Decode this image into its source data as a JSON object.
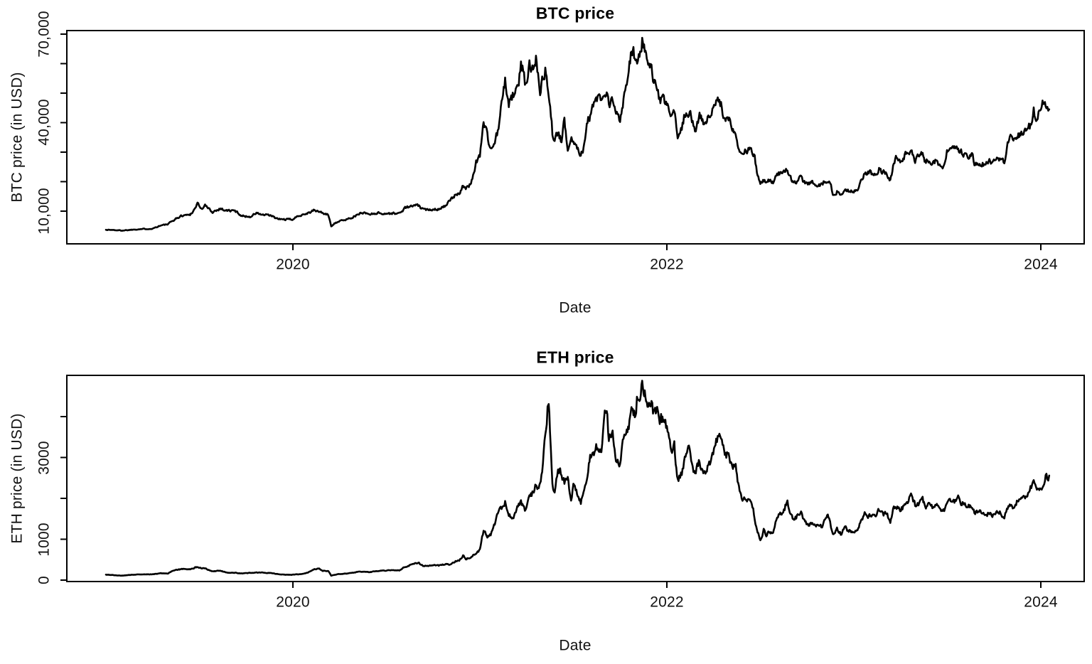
{
  "page": {
    "background": "#ffffff",
    "text_color": "#111111",
    "line_color": "#000000"
  },
  "chart_data": [
    {
      "type": "line",
      "name": "btc",
      "title": "BTC price",
      "xlabel": "Date",
      "ylabel": "BTC price (in USD)",
      "x_unit": "decimal_year",
      "x_ticks": [
        2020,
        2022,
        2024
      ],
      "x_tick_labels": [
        "2020",
        "2022",
        "2024"
      ],
      "y_ticks": [
        10000,
        20000,
        30000,
        40000,
        50000,
        60000,
        70000
      ],
      "y_tick_labels": [
        "10,000",
        "",
        "",
        "40,000",
        "",
        "",
        "70,000"
      ],
      "xlim": [
        2018.791,
        2024.232
      ],
      "ylim": [
        -1080,
        71200
      ],
      "grid": false,
      "legend": null,
      "line_color": "#000000",
      "line_width": 2.6,
      "noise": {
        "seed": 1337,
        "ar": 0.45,
        "sigma": 0.07,
        "step_years": 0.004
      },
      "x": [
        2019.0,
        2019.04,
        2019.08,
        2019.12,
        2019.16,
        2019.21,
        2019.25,
        2019.29,
        2019.33,
        2019.37,
        2019.41,
        2019.45,
        2019.478,
        2019.49,
        2019.51,
        2019.53,
        2019.57,
        2019.61,
        2019.65,
        2019.69,
        2019.73,
        2019.77,
        2019.805,
        2019.84,
        2019.88,
        2019.92,
        2019.96,
        2020.0,
        2020.04,
        2020.08,
        2020.115,
        2020.15,
        2020.19,
        2020.205,
        2020.23,
        2020.27,
        2020.31,
        2020.35,
        2020.37,
        2020.41,
        2020.45,
        2020.49,
        2020.53,
        2020.57,
        2020.6,
        2020.64,
        2020.67,
        2020.7,
        2020.74,
        2020.78,
        2020.82,
        2020.845,
        2020.87,
        2020.89,
        2020.91,
        2020.925,
        2020.945,
        2020.96,
        2020.98,
        2021.0,
        2021.02,
        2021.04,
        2021.058,
        2021.08,
        2021.1,
        2021.12,
        2021.135,
        2021.155,
        2021.18,
        2021.2,
        2021.22,
        2021.232,
        2021.245,
        2021.265,
        2021.285,
        2021.3,
        2021.315,
        2021.322,
        2021.333,
        2021.35,
        2021.368,
        2021.38,
        2021.388,
        2021.4,
        2021.418,
        2021.437,
        2021.452,
        2021.47,
        2021.49,
        2021.5,
        2021.52,
        2021.54,
        2021.558,
        2021.572,
        2021.59,
        2021.61,
        2021.63,
        2021.65,
        2021.668,
        2021.682,
        2021.69,
        2021.71,
        2021.728,
        2021.75,
        2021.768,
        2021.782,
        2021.8,
        2021.818,
        2021.832,
        2021.85,
        2021.868,
        2021.882,
        2021.9,
        2021.918,
        2021.93,
        2021.948,
        2021.962,
        2021.98,
        2022.0,
        2022.02,
        2022.04,
        2022.058,
        2022.08,
        2022.1,
        2022.118,
        2022.138,
        2022.155,
        2022.175,
        2022.195,
        2022.218,
        2022.248,
        2022.268,
        2022.29,
        2022.31,
        2022.33,
        2022.35,
        2022.368,
        2022.382,
        2022.4,
        2022.418,
        2022.44,
        2022.458,
        2022.47,
        2022.482,
        2022.5,
        2022.518,
        2022.532,
        2022.55,
        2022.568,
        2022.59,
        2022.61,
        2022.63,
        2022.645,
        2022.662,
        2022.68,
        2022.7,
        2022.718,
        2022.732,
        2022.75,
        2022.77,
        2022.79,
        2022.81,
        2022.83,
        2022.85,
        2022.868,
        2022.878,
        2022.888,
        2022.91,
        2022.93,
        2022.95,
        2022.968,
        2022.982,
        2023.0,
        2023.02,
        2023.038,
        2023.058,
        2023.08,
        2023.098,
        2023.118,
        2023.135,
        2023.155,
        2023.175,
        2023.195,
        2023.21,
        2023.225,
        2023.248,
        2023.268,
        2023.288,
        2023.31,
        2023.328,
        2023.35,
        2023.368,
        2023.382,
        2023.4,
        2023.42,
        2023.44,
        2023.455,
        2023.475,
        2023.488,
        2023.498,
        2023.518,
        2023.538,
        2023.558,
        2023.578,
        2023.598,
        2023.618,
        2023.632,
        2023.645,
        2023.665,
        2023.685,
        2023.705,
        2023.725,
        2023.745,
        2023.765,
        2023.785,
        2023.805,
        2023.815,
        2023.83,
        2023.85,
        2023.868,
        2023.888,
        2023.908,
        2023.928,
        2023.945,
        2023.962,
        2023.975,
        2023.992,
        2024.005,
        2024.018,
        2024.03,
        2024.04,
        2024.045
      ],
      "values": [
        3700,
        3620,
        3440,
        3610,
        3860,
        3980,
        4110,
        5120,
        5500,
        7280,
        8560,
        8830,
        11000,
        12900,
        10700,
        11900,
        9700,
        10900,
        10150,
        10100,
        8350,
        8100,
        9350,
        8700,
        8520,
        7300,
        7180,
        7220,
        8750,
        9340,
        10280,
        9650,
        8600,
        4970,
        6250,
        6860,
        7760,
        8800,
        9650,
        8960,
        9430,
        9150,
        9220,
        9230,
        11090,
        11740,
        11900,
        10340,
        10690,
        10790,
        12000,
        13780,
        15480,
        16320,
        18720,
        17150,
        18800,
        21400,
        26450,
        29000,
        40600,
        35500,
        31000,
        33100,
        38300,
        47400,
        54200,
        46300,
        49600,
        50400,
        59800,
        57100,
        52400,
        58800,
        59000,
        63300,
        56100,
        50100,
        54000,
        57800,
        49000,
        43000,
        36700,
        33200,
        36700,
        33400,
        40300,
        31900,
        35000,
        33500,
        31600,
        29900,
        32200,
        39500,
        42800,
        45600,
        48300,
        47100,
        47000,
        50100,
        45200,
        47300,
        42800,
        41500,
        48200,
        51500,
        61300,
        66000,
        61000,
        61500,
        67600,
        64900,
        58700,
        57200,
        54000,
        50500,
        47500,
        46900,
        46300,
        43100,
        42700,
        35100,
        38500,
        43800,
        44000,
        40100,
        37700,
        43200,
        39300,
        40900,
        44400,
        47200,
        45800,
        40100,
        41100,
        39200,
        36000,
        31000,
        29200,
        30200,
        31000,
        29900,
        28000,
        22600,
        19000,
        20600,
        19300,
        20800,
        19900,
        23300,
        22500,
        23300,
        24400,
        21300,
        20000,
        19800,
        22200,
        19700,
        19000,
        19600,
        19400,
        19100,
        19200,
        20600,
        20500,
        18300,
        16000,
        16700,
        15900,
        17100,
        17000,
        16800,
        16550,
        16950,
        20900,
        22700,
        23000,
        22900,
        21800,
        24600,
        23200,
        23500,
        20200,
        24700,
        27500,
        27250,
        28200,
        30100,
        30300,
        27600,
        29250,
        28900,
        27000,
        27100,
        26800,
        27200,
        25800,
        25100,
        26600,
        30000,
        30500,
        30600,
        30300,
        29900,
        29200,
        29100,
        29400,
        26050,
        26000,
        25900,
        25800,
        26550,
        26250,
        27000,
        27600,
        27000,
        29900,
        34200,
        34400,
        35100,
        36300,
        36000,
        37800,
        39000,
        43800,
        41400,
        43600,
        45200,
        47600,
        46800,
        43000,
        43400
      ]
    },
    {
      "type": "line",
      "name": "eth",
      "title": "ETH price",
      "xlabel": "Date",
      "ylabel": "ETH price (in USD)",
      "x_unit": "decimal_year",
      "x_ticks": [
        2020,
        2022,
        2024
      ],
      "x_tick_labels": [
        "2020",
        "2022",
        "2024"
      ],
      "y_ticks": [
        0,
        1000,
        2000,
        3000,
        4000
      ],
      "y_tick_labels": [
        "0",
        "1000",
        "",
        "3000",
        ""
      ],
      "xlim": [
        2018.791,
        2024.232
      ],
      "ylim": [
        -35,
        5010
      ],
      "grid": false,
      "legend": null,
      "line_color": "#000000",
      "line_width": 2.6,
      "noise": {
        "seed": 9042,
        "ar": 0.45,
        "sigma": 0.07,
        "step_years": 0.004
      },
      "x": [
        2019.0,
        2019.04,
        2019.08,
        2019.12,
        2019.16,
        2019.21,
        2019.25,
        2019.29,
        2019.33,
        2019.37,
        2019.41,
        2019.45,
        2019.478,
        2019.49,
        2019.51,
        2019.53,
        2019.57,
        2019.61,
        2019.65,
        2019.69,
        2019.73,
        2019.77,
        2019.805,
        2019.84,
        2019.88,
        2019.92,
        2019.96,
        2020.0,
        2020.04,
        2020.08,
        2020.115,
        2020.14,
        2020.16,
        2020.19,
        2020.205,
        2020.23,
        2020.27,
        2020.31,
        2020.35,
        2020.37,
        2020.41,
        2020.45,
        2020.49,
        2020.53,
        2020.57,
        2020.6,
        2020.64,
        2020.67,
        2020.7,
        2020.74,
        2020.78,
        2020.82,
        2020.845,
        2020.87,
        2020.89,
        2020.91,
        2020.925,
        2020.945,
        2020.96,
        2020.98,
        2021.0,
        2021.02,
        2021.04,
        2021.058,
        2021.08,
        2021.1,
        2021.12,
        2021.135,
        2021.155,
        2021.18,
        2021.2,
        2021.22,
        2021.232,
        2021.245,
        2021.265,
        2021.285,
        2021.3,
        2021.315,
        2021.322,
        2021.333,
        2021.35,
        2021.362,
        2021.368,
        2021.375,
        2021.38,
        2021.388,
        2021.4,
        2021.418,
        2021.437,
        2021.452,
        2021.47,
        2021.488,
        2021.5,
        2021.52,
        2021.54,
        2021.558,
        2021.572,
        2021.59,
        2021.61,
        2021.63,
        2021.65,
        2021.668,
        2021.682,
        2021.69,
        2021.71,
        2021.728,
        2021.75,
        2021.768,
        2021.782,
        2021.8,
        2021.818,
        2021.832,
        2021.84,
        2021.85,
        2021.868,
        2021.882,
        2021.9,
        2021.918,
        2021.93,
        2021.948,
        2021.962,
        2021.98,
        2022.0,
        2022.02,
        2022.04,
        2022.058,
        2022.08,
        2022.1,
        2022.118,
        2022.138,
        2022.155,
        2022.175,
        2022.195,
        2022.218,
        2022.248,
        2022.268,
        2022.29,
        2022.31,
        2022.33,
        2022.35,
        2022.368,
        2022.382,
        2022.4,
        2022.418,
        2022.44,
        2022.458,
        2022.47,
        2022.482,
        2022.5,
        2022.518,
        2022.532,
        2022.55,
        2022.568,
        2022.59,
        2022.61,
        2022.63,
        2022.645,
        2022.662,
        2022.68,
        2022.7,
        2022.718,
        2022.732,
        2022.75,
        2022.77,
        2022.79,
        2022.81,
        2022.83,
        2022.85,
        2022.868,
        2022.878,
        2022.888,
        2022.91,
        2022.93,
        2022.95,
        2022.968,
        2022.982,
        2023.0,
        2023.02,
        2023.038,
        2023.058,
        2023.08,
        2023.098,
        2023.118,
        2023.135,
        2023.155,
        2023.175,
        2023.195,
        2023.21,
        2023.225,
        2023.248,
        2023.268,
        2023.288,
        2023.31,
        2023.328,
        2023.35,
        2023.368,
        2023.382,
        2023.4,
        2023.42,
        2023.44,
        2023.455,
        2023.475,
        2023.488,
        2023.498,
        2023.518,
        2023.538,
        2023.558,
        2023.578,
        2023.598,
        2023.618,
        2023.632,
        2023.645,
        2023.665,
        2023.685,
        2023.705,
        2023.725,
        2023.745,
        2023.765,
        2023.785,
        2023.805,
        2023.815,
        2023.83,
        2023.85,
        2023.868,
        2023.888,
        2023.908,
        2023.928,
        2023.945,
        2023.962,
        2023.975,
        2023.992,
        2024.005,
        2024.018,
        2024.03,
        2024.04,
        2024.045
      ],
      "values": [
        133,
        122,
        107,
        123,
        137,
        138,
        141,
        167,
        163,
        249,
        268,
        265,
        308,
        318,
        290,
        285,
        218,
        226,
        186,
        181,
        166,
        176,
        188,
        181,
        176,
        149,
        133,
        130,
        144,
        181,
        266,
        281,
        228,
        229,
        111,
        136,
        158,
        171,
        206,
        210,
        191,
        226,
        231,
        241,
        240,
        321,
        391,
        431,
        337,
        366,
        356,
        390,
        386,
        456,
        481,
        601,
        522,
        555,
        592,
        642,
        737,
        1220,
        1092,
        1112,
        1376,
        1681,
        1800,
        1942,
        1572,
        1532,
        1822,
        1872,
        1805,
        1684,
        2010,
        2136,
        2301,
        2215,
        2320,
        2752,
        3480,
        4170,
        4330,
        3650,
        3282,
        2442,
        2102,
        2712,
        2632,
        2372,
        2542,
        1892,
        2252,
        2122,
        1882,
        2192,
        2532,
        3010,
        3160,
        3292,
        3232,
        3940,
        3932,
        3432,
        3612,
        3002,
        2852,
        3392,
        3572,
        3852,
        4172,
        3922,
        4410,
        4322,
        4810,
        4622,
        4082,
        4282,
        4102,
        4232,
        3922,
        3962,
        3682,
        3202,
        3272,
        2442,
        2592,
        3012,
        3182,
        2772,
        2622,
        2952,
        2562,
        2732,
        3112,
        3402,
        3522,
        3032,
        3062,
        2822,
        2752,
        2342,
        2012,
        1962,
        1942,
        1802,
        1532,
        1212,
        996,
        1232,
        1072,
        1222,
        1112,
        1542,
        1642,
        1782,
        1942,
        1622,
        1482,
        1582,
        1722,
        1472,
        1332,
        1402,
        1362,
        1292,
        1312,
        1522,
        1572,
        1332,
        1102,
        1252,
        1132,
        1282,
        1232,
        1202,
        1196,
        1262,
        1452,
        1632,
        1572,
        1632,
        1512,
        1702,
        1592,
        1642,
        1432,
        1712,
        1802,
        1722,
        1792,
        1922,
        2102,
        1842,
        1902,
        1982,
        1792,
        1822,
        1792,
        1882,
        1812,
        1652,
        1752,
        1892,
        1932,
        1872,
        1992,
        1892,
        1862,
        1832,
        1842,
        1682,
        1652,
        1632,
        1632,
        1622,
        1582,
        1672,
        1642,
        1562,
        1672,
        1792,
        1812,
        1892,
        2062,
        1972,
        2052,
        2242,
        2352,
        2222,
        2272,
        2282,
        2332,
        2582,
        2480,
        2590
      ]
    }
  ]
}
